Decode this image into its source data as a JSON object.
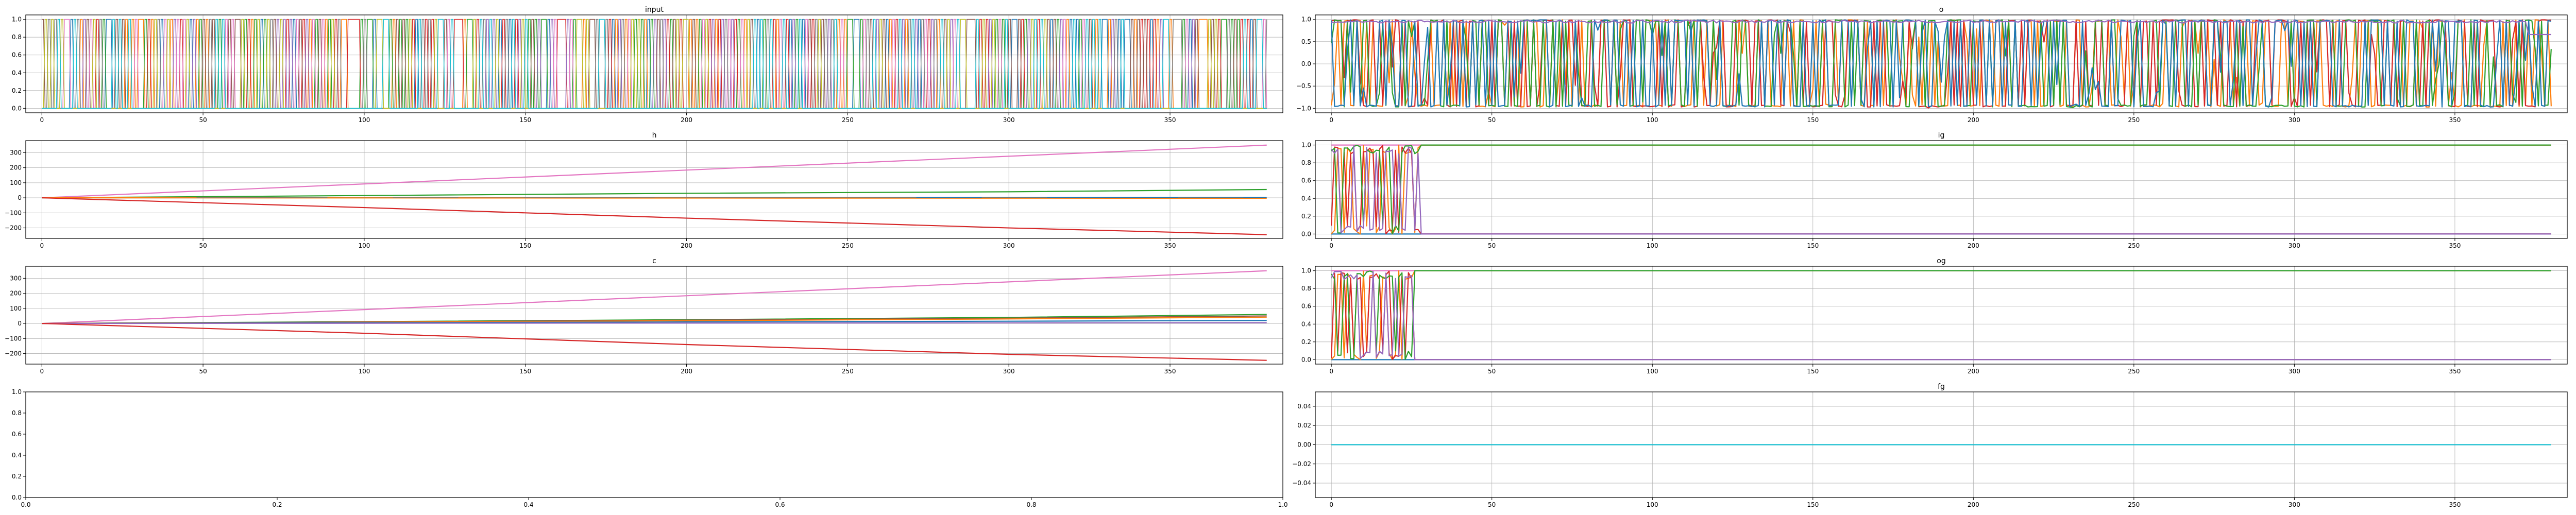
{
  "figure": {
    "background": "#ffffff"
  },
  "palette": [
    "#1f77b4",
    "#ff7f0e",
    "#2ca02c",
    "#d62728",
    "#9467bd",
    "#8c564b",
    "#e377c2",
    "#7f7f7f",
    "#bcbd22",
    "#17becf"
  ],
  "chart_data": [
    {
      "id": "input",
      "type": "line",
      "title": "input",
      "xlim": [
        -5,
        385
      ],
      "ylim": [
        -0.05,
        1.05
      ],
      "xticks": [
        0,
        50,
        100,
        150,
        200,
        250,
        300,
        350
      ],
      "xtick_labels": [
        "0",
        "50",
        "100",
        "150",
        "200",
        "250",
        "300",
        "350"
      ],
      "yticks": [
        0,
        0.2,
        0.4,
        0.6,
        0.8,
        1.0
      ],
      "ytick_labels": [
        "0.0",
        "0.2",
        "0.4",
        "0.6",
        "0.8",
        "1.0"
      ],
      "grid": true,
      "legend": "none",
      "x_range": [
        0,
        380
      ],
      "series_count": 10,
      "pattern": "one-hot binary pulse train: at each time step one of the 10 series is 1 and the rest are 0",
      "series": [
        {
          "color": "#1f77b4",
          "values": []
        },
        {
          "color": "#ff7f0e",
          "values": []
        },
        {
          "color": "#2ca02c",
          "values": []
        },
        {
          "color": "#d62728",
          "values": []
        },
        {
          "color": "#9467bd",
          "values": []
        },
        {
          "color": "#8c564b",
          "values": []
        },
        {
          "color": "#e377c2",
          "values": []
        },
        {
          "color": "#7f7f7f",
          "values": []
        },
        {
          "color": "#bcbd22",
          "values": []
        },
        {
          "color": "#17becf",
          "values": []
        }
      ]
    },
    {
      "id": "o",
      "type": "line",
      "title": "o",
      "xlim": [
        -5,
        385
      ],
      "ylim": [
        -1.1,
        1.1
      ],
      "xticks": [
        0,
        50,
        100,
        150,
        200,
        250,
        300,
        350
      ],
      "xtick_labels": [
        "0",
        "50",
        "100",
        "150",
        "200",
        "250",
        "300",
        "350"
      ],
      "yticks": [
        -1.0,
        -0.5,
        0.0,
        0.5,
        1.0
      ],
      "ytick_labels": [
        "−1.0",
        "−0.5",
        "0.0",
        "0.5",
        "1.0"
      ],
      "grid": true,
      "legend": "none",
      "x_range": [
        0,
        380
      ],
      "pattern": "dense oscillation between -1 and 1; purple series stays near 0.95, drops to ~0.65 at the end",
      "series": [
        {
          "color": "#ff7f0e",
          "values": []
        },
        {
          "color": "#d62728",
          "values": []
        },
        {
          "color": "#2ca02c",
          "values": []
        },
        {
          "color": "#1f77b4",
          "values": []
        },
        {
          "color": "#9467bd",
          "values": []
        }
      ]
    },
    {
      "id": "h",
      "type": "line",
      "title": "h",
      "xlim": [
        -5,
        385
      ],
      "ylim": [
        -270,
        380
      ],
      "xticks": [
        0,
        50,
        100,
        150,
        200,
        250,
        300,
        350
      ],
      "xtick_labels": [
        "0",
        "50",
        "100",
        "150",
        "200",
        "250",
        "300",
        "350"
      ],
      "yticks": [
        -200,
        -100,
        0,
        100,
        200,
        300
      ],
      "ytick_labels": [
        "−200",
        "−100",
        "0",
        "100",
        "200",
        "300"
      ],
      "grid": true,
      "legend": "none",
      "series": [
        {
          "color": "#e377c2",
          "x": [
            0,
            380
          ],
          "values": [
            0,
            350
          ]
        },
        {
          "color": "#2ca02c",
          "x": [
            0,
            100,
            200,
            300,
            380
          ],
          "values": [
            0,
            15,
            30,
            40,
            55
          ]
        },
        {
          "color": "#1f77b4",
          "x": [
            0,
            380
          ],
          "values": [
            0,
            2
          ]
        },
        {
          "color": "#ff7f0e",
          "x": [
            0,
            380
          ],
          "values": [
            0,
            -3
          ]
        },
        {
          "color": "#d62728",
          "x": [
            0,
            100,
            200,
            300,
            380
          ],
          "values": [
            0,
            -65,
            -135,
            -200,
            -245
          ]
        }
      ]
    },
    {
      "id": "ig",
      "type": "line",
      "title": "ig",
      "xlim": [
        -5,
        385
      ],
      "ylim": [
        -0.05,
        1.05
      ],
      "xticks": [
        0,
        50,
        100,
        150,
        200,
        250,
        300,
        350
      ],
      "xtick_labels": [
        "0",
        "50",
        "100",
        "150",
        "200",
        "250",
        "300",
        "350"
      ],
      "yticks": [
        0,
        0.2,
        0.4,
        0.6,
        0.8,
        1.0
      ],
      "ytick_labels": [
        "0.0",
        "0.2",
        "0.4",
        "0.6",
        "0.8",
        "1.0"
      ],
      "grid": true,
      "legend": "none",
      "pattern": "oscillating between 0 and 1 for x < 28, then constant",
      "series": [
        {
          "color": "#e377c2",
          "x": [
            0,
            380
          ],
          "values": [
            1.0,
            1.0
          ]
        },
        {
          "color": "#1f77b4",
          "x": [
            0,
            380
          ],
          "values": [
            0.0,
            0.0
          ]
        },
        {
          "color": "#ff7f0e",
          "values": []
        },
        {
          "color": "#d62728",
          "values": []
        },
        {
          "color": "#2ca02c",
          "values": []
        },
        {
          "color": "#9467bd",
          "values": []
        }
      ]
    },
    {
      "id": "c",
      "type": "line",
      "title": "c",
      "xlim": [
        -5,
        385
      ],
      "ylim": [
        -270,
        380
      ],
      "xticks": [
        0,
        50,
        100,
        150,
        200,
        250,
        300,
        350
      ],
      "xtick_labels": [
        "0",
        "50",
        "100",
        "150",
        "200",
        "250",
        "300",
        "350"
      ],
      "yticks": [
        -200,
        -100,
        0,
        100,
        200,
        300
      ],
      "ytick_labels": [
        "−200",
        "−100",
        "0",
        "100",
        "200",
        "300"
      ],
      "grid": true,
      "legend": "none",
      "series": [
        {
          "color": "#e377c2",
          "x": [
            0,
            380
          ],
          "values": [
            0,
            350
          ]
        },
        {
          "color": "#2ca02c",
          "x": [
            0,
            100,
            200,
            300,
            380
          ],
          "values": [
            0,
            12,
            25,
            40,
            60
          ]
        },
        {
          "color": "#8c564b",
          "x": [
            0,
            100,
            200,
            300,
            380
          ],
          "values": [
            0,
            10,
            22,
            35,
            50
          ]
        },
        {
          "color": "#ff7f0e",
          "x": [
            0,
            100,
            200,
            300,
            380
          ],
          "values": [
            0,
            8,
            18,
            30,
            42
          ]
        },
        {
          "color": "#1f77b4",
          "x": [
            0,
            100,
            200,
            300,
            380
          ],
          "values": [
            0,
            5,
            10,
            15,
            20
          ]
        },
        {
          "color": "#9467bd",
          "x": [
            0,
            380
          ],
          "values": [
            0,
            5
          ]
        },
        {
          "color": "#d62728",
          "x": [
            0,
            100,
            200,
            300,
            380
          ],
          "values": [
            0,
            -65,
            -140,
            -205,
            -245
          ]
        }
      ]
    },
    {
      "id": "og",
      "type": "line",
      "title": "og",
      "xlim": [
        -5,
        385
      ],
      "ylim": [
        -0.05,
        1.05
      ],
      "xticks": [
        0,
        50,
        100,
        150,
        200,
        250,
        300,
        350
      ],
      "xtick_labels": [
        "0",
        "50",
        "100",
        "150",
        "200",
        "250",
        "300",
        "350"
      ],
      "yticks": [
        0,
        0.2,
        0.4,
        0.6,
        0.8,
        1.0
      ],
      "ytick_labels": [
        "0.0",
        "0.2",
        "0.4",
        "0.6",
        "0.8",
        "1.0"
      ],
      "grid": true,
      "legend": "none",
      "pattern": "oscillating between 0 and 1 for x < 26, then constant",
      "series": [
        {
          "color": "#e377c2",
          "x": [
            0,
            380
          ],
          "values": [
            1.0,
            1.0
          ]
        },
        {
          "color": "#1f77b4",
          "x": [
            0,
            380
          ],
          "values": [
            0.0,
            0.0
          ]
        },
        {
          "color": "#ff7f0e",
          "values": []
        },
        {
          "color": "#d62728",
          "values": []
        },
        {
          "color": "#2ca02c",
          "values": []
        },
        {
          "color": "#9467bd",
          "values": []
        }
      ]
    },
    {
      "id": "empty",
      "type": "line",
      "title": "",
      "xlim": [
        0,
        1
      ],
      "ylim": [
        0,
        1
      ],
      "xticks": [
        0,
        0.2,
        0.4,
        0.6,
        0.8,
        1.0
      ],
      "xtick_labels": [
        "0.0",
        "0.2",
        "0.4",
        "0.6",
        "0.8",
        "1.0"
      ],
      "yticks": [
        0,
        0.2,
        0.4,
        0.6,
        0.8,
        1.0
      ],
      "ytick_labels": [
        "0.0",
        "0.2",
        "0.4",
        "0.6",
        "0.8",
        "1.0"
      ],
      "grid": false,
      "legend": "none",
      "series": []
    },
    {
      "id": "fg",
      "type": "line",
      "title": "fg",
      "xlim": [
        -5,
        385
      ],
      "ylim": [
        -0.055,
        0.055
      ],
      "xticks": [
        0,
        50,
        100,
        150,
        200,
        250,
        300,
        350
      ],
      "xtick_labels": [
        "0",
        "50",
        "100",
        "150",
        "200",
        "250",
        "300",
        "350"
      ],
      "yticks": [
        -0.04,
        -0.02,
        0.0,
        0.02,
        0.04
      ],
      "ytick_labels": [
        "−0.04",
        "−0.02",
        "0.00",
        "0.02",
        "0.04"
      ],
      "grid": true,
      "legend": "none",
      "series": [
        {
          "color": "#17becf",
          "x": [
            0,
            380
          ],
          "values": [
            0.0,
            0.0
          ]
        }
      ]
    }
  ]
}
